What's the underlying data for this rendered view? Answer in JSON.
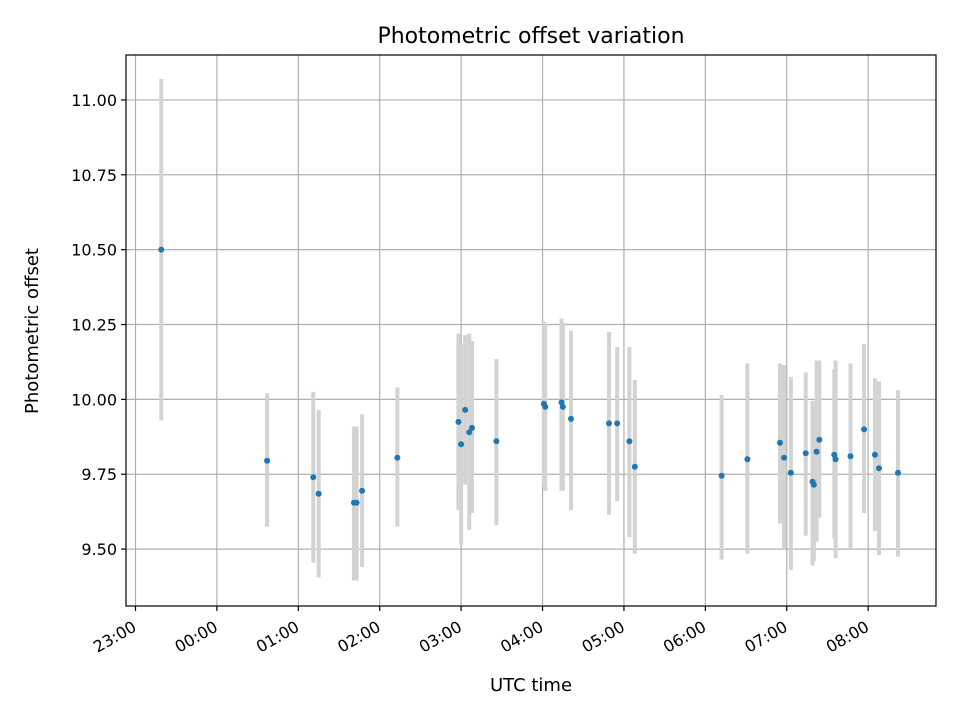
{
  "chart_data": {
    "type": "scatter",
    "title": "Photometric offset variation",
    "xlabel": "UTC time",
    "ylabel": "Photometric offset",
    "grid": true,
    "xlim": [
      "22:53",
      "08:50"
    ],
    "ylim": [
      9.31,
      11.15
    ],
    "yticks": [
      9.5,
      9.75,
      10.0,
      10.25,
      10.5,
      10.75,
      11.0
    ],
    "ytick_labels": [
      "9.50",
      "9.75",
      "10.00",
      "10.25",
      "10.50",
      "10.75",
      "11.00"
    ],
    "xticks": [
      "23:00",
      "00:00",
      "01:00",
      "02:00",
      "03:00",
      "04:00",
      "05:00",
      "06:00",
      "07:00",
      "08:00"
    ],
    "xtick_labels": [
      "23:00",
      "00:00",
      "01:00",
      "02:00",
      "03:00",
      "04:00",
      "05:00",
      "06:00",
      "07:00",
      "08:00"
    ],
    "colors": {
      "marker": "#1f77b4",
      "errorbar": "#d3d3d3",
      "grid": "#b0b0b0"
    },
    "points": [
      {
        "x": "23:19",
        "y": 10.5,
        "ylo": 9.93,
        "yhi": 11.07
      },
      {
        "x": "00:37",
        "y": 9.795,
        "ylo": 9.575,
        "yhi": 10.02
      },
      {
        "x": "01:11",
        "y": 9.74,
        "ylo": 9.455,
        "yhi": 10.025
      },
      {
        "x": "01:15",
        "y": 9.685,
        "ylo": 9.405,
        "yhi": 9.965
      },
      {
        "x": "01:41",
        "y": 9.655,
        "ylo": 9.395,
        "yhi": 9.91
      },
      {
        "x": "01:43",
        "y": 9.655,
        "ylo": 9.395,
        "yhi": 9.91
      },
      {
        "x": "01:47",
        "y": 9.695,
        "ylo": 9.44,
        "yhi": 9.95
      },
      {
        "x": "02:13",
        "y": 9.805,
        "ylo": 9.575,
        "yhi": 10.04
      },
      {
        "x": "02:58",
        "y": 9.925,
        "ylo": 9.63,
        "yhi": 10.22
      },
      {
        "x": "03:00",
        "y": 9.85,
        "ylo": 9.515,
        "yhi": 10.185
      },
      {
        "x": "03:03",
        "y": 9.965,
        "ylo": 9.715,
        "yhi": 10.215
      },
      {
        "x": "03:06",
        "y": 9.89,
        "ylo": 9.565,
        "yhi": 10.22
      },
      {
        "x": "03:08",
        "y": 9.905,
        "ylo": 9.62,
        "yhi": 10.195
      },
      {
        "x": "03:26",
        "y": 9.86,
        "ylo": 9.58,
        "yhi": 10.135
      },
      {
        "x": "04:01",
        "y": 9.985,
        "ylo": 9.71,
        "yhi": 10.26
      },
      {
        "x": "04:02",
        "y": 9.975,
        "ylo": 9.695,
        "yhi": 10.25
      },
      {
        "x": "04:14",
        "y": 9.99,
        "ylo": 9.695,
        "yhi": 10.27
      },
      {
        "x": "04:15",
        "y": 9.975,
        "ylo": 9.695,
        "yhi": 10.255
      },
      {
        "x": "04:21",
        "y": 9.935,
        "ylo": 9.63,
        "yhi": 10.23
      },
      {
        "x": "04:49",
        "y": 9.92,
        "ylo": 9.615,
        "yhi": 10.225
      },
      {
        "x": "04:55",
        "y": 9.92,
        "ylo": 9.66,
        "yhi": 10.175
      },
      {
        "x": "05:04",
        "y": 9.86,
        "ylo": 9.54,
        "yhi": 10.175
      },
      {
        "x": "05:08",
        "y": 9.775,
        "ylo": 9.485,
        "yhi": 10.065
      },
      {
        "x": "06:12",
        "y": 9.745,
        "ylo": 9.465,
        "yhi": 10.015
      },
      {
        "x": "06:31",
        "y": 9.8,
        "ylo": 9.485,
        "yhi": 10.12
      },
      {
        "x": "06:55",
        "y": 9.855,
        "ylo": 9.585,
        "yhi": 10.12
      },
      {
        "x": "06:58",
        "y": 9.805,
        "ylo": 9.5,
        "yhi": 10.115
      },
      {
        "x": "07:03",
        "y": 9.755,
        "ylo": 9.43,
        "yhi": 10.075
      },
      {
        "x": "07:14",
        "y": 9.82,
        "ylo": 9.545,
        "yhi": 10.09
      },
      {
        "x": "07:19",
        "y": 9.725,
        "ylo": 9.445,
        "yhi": 9.995
      },
      {
        "x": "07:20",
        "y": 9.715,
        "ylo": 9.46,
        "yhi": 9.97
      },
      {
        "x": "07:22",
        "y": 9.825,
        "ylo": 9.525,
        "yhi": 10.13
      },
      {
        "x": "07:24",
        "y": 9.865,
        "ylo": 9.605,
        "yhi": 10.13
      },
      {
        "x": "07:35",
        "y": 9.815,
        "ylo": 9.535,
        "yhi": 10.1
      },
      {
        "x": "07:36",
        "y": 9.8,
        "ylo": 9.47,
        "yhi": 10.13
      },
      {
        "x": "07:47",
        "y": 9.81,
        "ylo": 9.5,
        "yhi": 10.12
      },
      {
        "x": "07:57",
        "y": 9.9,
        "ylo": 9.62,
        "yhi": 10.185
      },
      {
        "x": "08:05",
        "y": 9.815,
        "ylo": 9.56,
        "yhi": 10.07
      },
      {
        "x": "08:08",
        "y": 9.77,
        "ylo": 9.48,
        "yhi": 10.06
      },
      {
        "x": "08:22",
        "y": 9.755,
        "ylo": 9.475,
        "yhi": 10.03
      }
    ]
  }
}
